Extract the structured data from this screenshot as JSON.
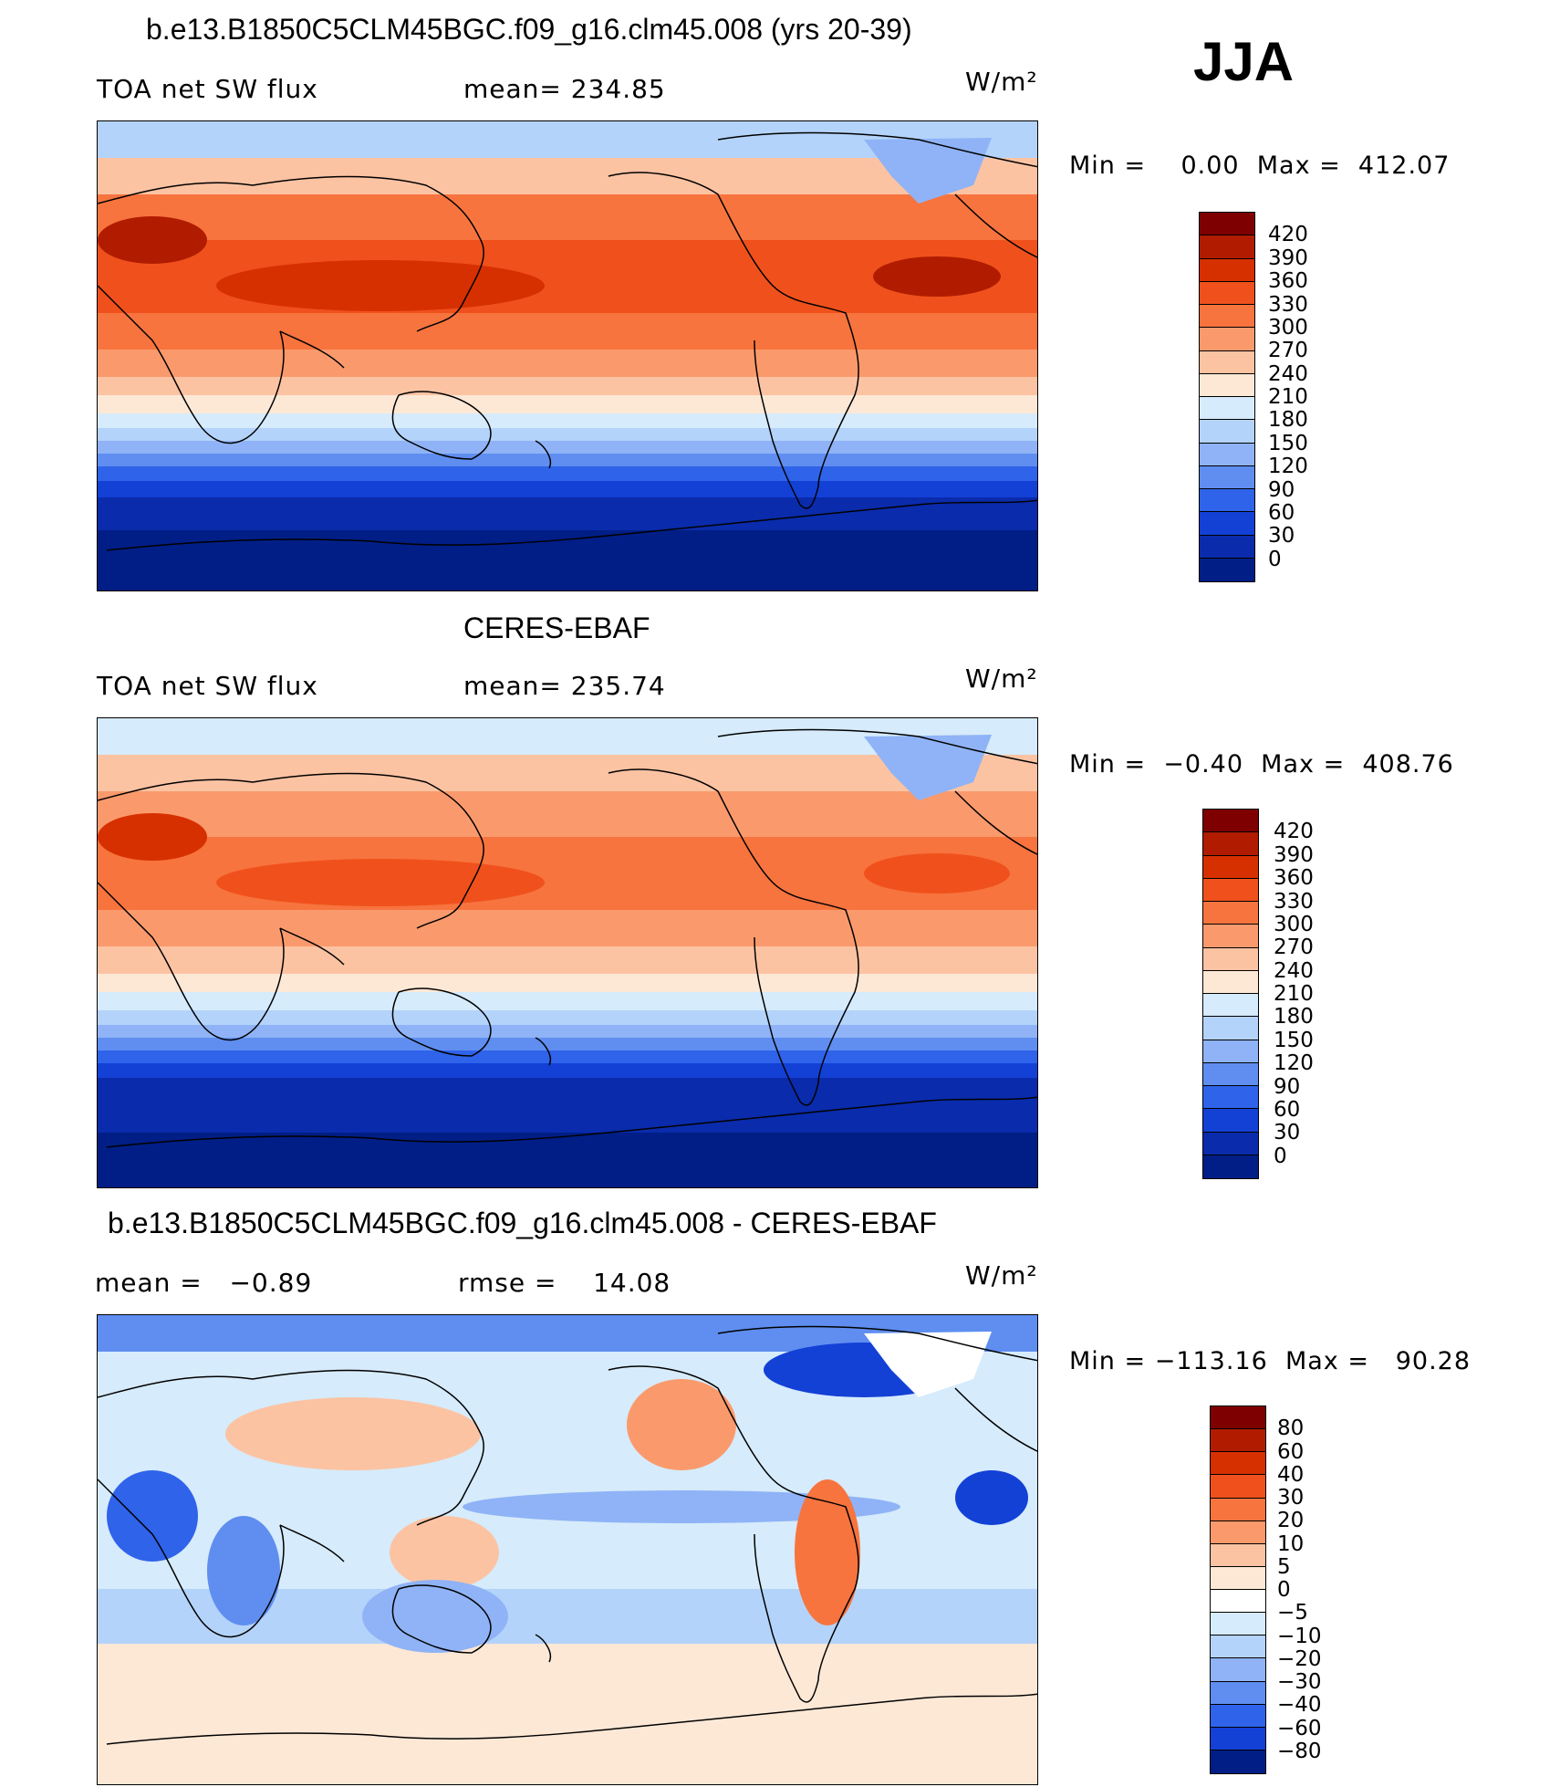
{
  "season": "JJA",
  "units": "W/m²",
  "panels": [
    {
      "title": "b.e13.B1850C5CLM45BGC.f09_g16.clm45.008 (yrs 20-39)",
      "left_label": "TOA net SW flux",
      "center_label": "mean= 234.85",
      "units": "W/m²",
      "min_max": "Min =    0.00  Max =  412.07",
      "colorbar": {
        "labels": [
          "420",
          "390",
          "360",
          "330",
          "300",
          "270",
          "240",
          "210",
          "180",
          "150",
          "120",
          "90",
          "60",
          "30",
          "0"
        ],
        "colors": [
          "#7f0000",
          "#b11c00",
          "#d73000",
          "#f0511c",
          "#f7743e",
          "#fa9a6c",
          "#fcc3a3",
          "#fde8d6",
          "#d6ebfb",
          "#b4d3fa",
          "#8fb3f6",
          "#5f8ef0",
          "#2f63ea",
          "#1341d6",
          "#0a2bab",
          "#001e85"
        ]
      }
    },
    {
      "title": "CERES-EBAF",
      "left_label": "TOA net SW flux",
      "center_label": "mean= 235.74",
      "units": "W/m²",
      "min_max": "Min =  −0.40  Max =  408.76",
      "colorbar": {
        "labels": [
          "420",
          "390",
          "360",
          "330",
          "300",
          "270",
          "240",
          "210",
          "180",
          "150",
          "120",
          "90",
          "60",
          "30",
          "0"
        ],
        "colors": [
          "#7f0000",
          "#b11c00",
          "#d73000",
          "#f0511c",
          "#f7743e",
          "#fa9a6c",
          "#fcc3a3",
          "#fde8d6",
          "#d6ebfb",
          "#b4d3fa",
          "#8fb3f6",
          "#5f8ef0",
          "#2f63ea",
          "#1341d6",
          "#0a2bab",
          "#001e85"
        ]
      }
    },
    {
      "title": "b.e13.B1850C5CLM45BGC.f09_g16.clm45.008 - CERES-EBAF",
      "left_label": "mean =   −0.89",
      "center_label": "rmse =    14.08",
      "units": "W/m²",
      "min_max": "Min = −113.16  Max =   90.28",
      "colorbar": {
        "labels": [
          "80",
          "60",
          "40",
          "30",
          "20",
          "10",
          "5",
          "0",
          "−5",
          "−10",
          "−20",
          "−30",
          "−40",
          "−60",
          "−80"
        ],
        "colors": [
          "#7f0000",
          "#b11c00",
          "#d73000",
          "#f0511c",
          "#f7743e",
          "#fa9a6c",
          "#fcc3a3",
          "#fde8d6",
          "#ffffff",
          "#d6ebfb",
          "#b4d3fa",
          "#8fb3f6",
          "#5f8ef0",
          "#2f63ea",
          "#1341d6",
          "#001e85"
        ]
      }
    }
  ]
}
